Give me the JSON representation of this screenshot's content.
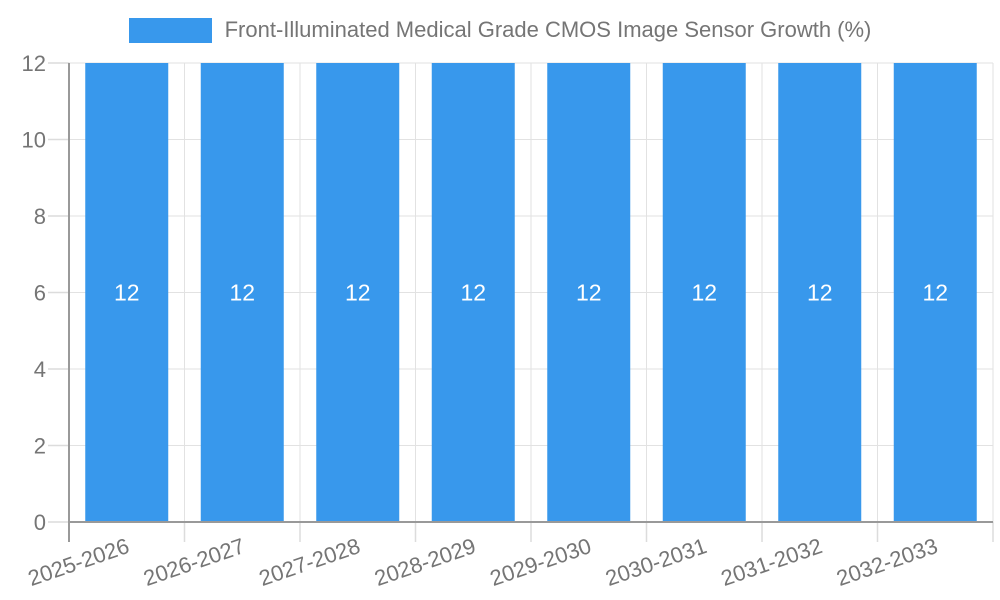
{
  "legend": {
    "swatch_color": "#3898EC"
  },
  "chart_data": {
    "type": "bar",
    "title": "Front-Illuminated Medical Grade CMOS Image Sensor Growth (%)",
    "categories": [
      "2025-2026",
      "2026-2027",
      "2027-2028",
      "2028-2029",
      "2029-2030",
      "2030-2031",
      "2031-2032",
      "2032-2033"
    ],
    "series": [
      {
        "name": "Front-Illuminated Medical Grade CMOS Image Sensor Growth (%)",
        "values": [
          12,
          12,
          12,
          12,
          12,
          12,
          12,
          12
        ]
      }
    ],
    "bar_value_labels": [
      "12",
      "12",
      "12",
      "12",
      "12",
      "12",
      "12",
      "12"
    ],
    "yticks": [
      0,
      2,
      4,
      6,
      8,
      10,
      12
    ],
    "ylim": [
      0,
      12
    ],
    "xlabel": "",
    "ylabel": "",
    "grid": true,
    "legend_position": "top"
  },
  "colors": {
    "bar": "#3898EC",
    "grid": "#E2E2E2",
    "axis": "#999999",
    "text": "#757575",
    "value_label": "#FFFFFF",
    "background": "#FFFFFF"
  }
}
